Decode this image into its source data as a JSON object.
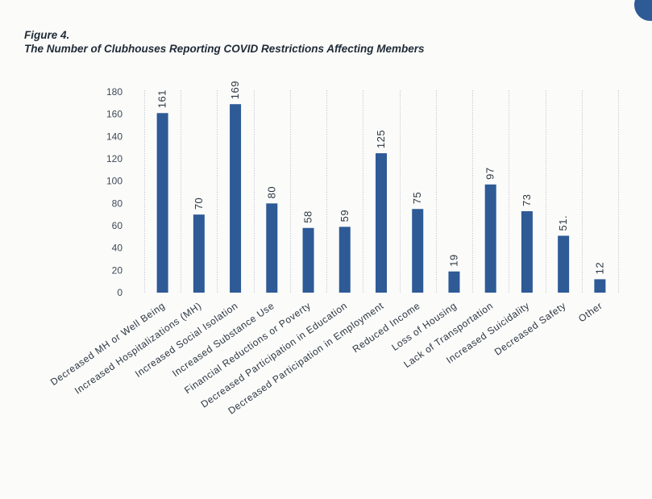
{
  "figure": {
    "label": "Figure 4.",
    "title": "The Number of Clubhouses Reporting COVID Restrictions Affecting Members"
  },
  "chart_data": {
    "type": "bar",
    "title": "The Number of Clubhouses Reporting COVID Restrictions Affecting Members",
    "xlabel": "",
    "ylabel": "",
    "ylim": [
      0,
      180
    ],
    "yticks": [
      0,
      20,
      40,
      60,
      80,
      100,
      120,
      140,
      160,
      180
    ],
    "grid": false,
    "categories": [
      "Decreased MH or Well Being",
      "Increased Hospitalizations (MH)",
      "Increased Social Isolation",
      "Increased Substance Use",
      "Financial Reductions or Poverty",
      "Decreased Participation in Education",
      "Decreased Participation in Employment",
      "Reduced Income",
      "Loss of Housing",
      "Lack of Transportation",
      "Increased Suicidality",
      "Decreased Safety",
      "Other"
    ],
    "values": [
      161,
      70,
      169,
      80,
      58,
      59,
      125,
      75,
      19,
      97,
      73,
      51,
      12
    ],
    "data_labels": [
      "161",
      "70",
      "169",
      "80",
      "58",
      "59",
      "125",
      "75",
      "19",
      "97",
      "73",
      "51.",
      "12"
    ],
    "colors": {
      "bar": "#2e5a96",
      "separator": "#c9cdd2",
      "text": "#2b3640"
    }
  }
}
